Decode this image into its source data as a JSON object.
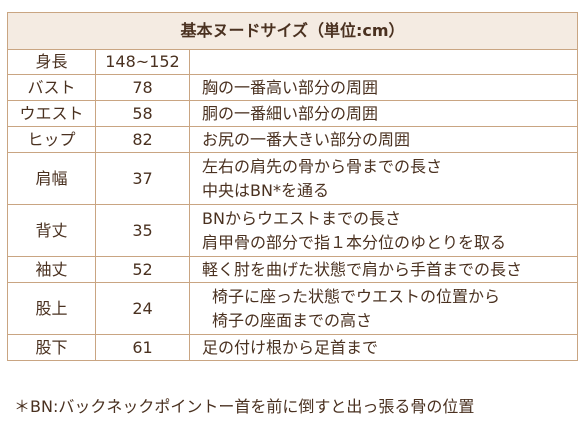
{
  "table": {
    "title": "基本ヌードサイズ（単位:cm）",
    "rows": [
      {
        "part": "身長",
        "value": "148~152",
        "desc": []
      },
      {
        "part": "バスト",
        "value": "78",
        "desc": [
          "胸の一番高い部分の周囲"
        ]
      },
      {
        "part": "ウエスト",
        "value": "58",
        "desc": [
          "胴の一番細い部分の周囲"
        ]
      },
      {
        "part": "ヒップ",
        "value": "82",
        "desc": [
          "お尻の一番大きい部分の周囲"
        ]
      },
      {
        "part": "肩幅",
        "value": "37",
        "desc": [
          "左右の肩先の骨から骨までの長さ",
          "中央はBN*を通る"
        ]
      },
      {
        "part": "背丈",
        "value": "35",
        "desc": [
          "BNからウエストまでの長さ",
          "肩甲骨の部分で指１本分位のゆとりを取る"
        ]
      },
      {
        "part": "袖丈",
        "value": "52",
        "desc": [
          "軽く肘を曲げた状態で肩から手首までの長さ"
        ]
      },
      {
        "part": "股上",
        "value": "24",
        "desc": [
          "椅子に座った状態でウエストの位置から",
          "椅子の座面までの高さ"
        ]
      },
      {
        "part": "股下",
        "value": "61",
        "desc": [
          "足の付け根から足首まで"
        ]
      }
    ]
  },
  "footnote": "＊BN:バックネックポイントー首を前に倒すと出っ張る骨の位置"
}
